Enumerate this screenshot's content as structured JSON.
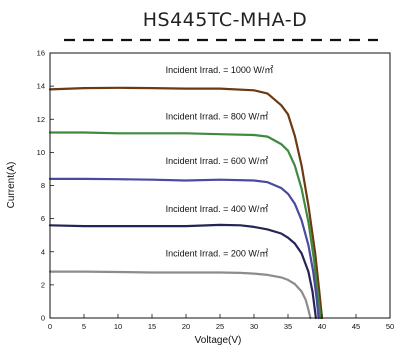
{
  "chart_data": {
    "type": "line",
    "title": "HS445TC-MHA-D",
    "xlabel": "Voltage(V)",
    "ylabel": "Current(A)",
    "xlim": [
      0,
      50
    ],
    "ylim": [
      0,
      16
    ],
    "x_ticks": [
      "0",
      "5",
      "10",
      "15",
      "20",
      "25",
      "30",
      "35",
      "40",
      "45",
      "50"
    ],
    "y_ticks": [
      "0",
      "2",
      "4",
      "6",
      "8",
      "10",
      "12",
      "14",
      "16"
    ],
    "grid": false,
    "series": [
      {
        "name": "Incident Irrad. = 1000 W/㎡",
        "color": "#6b3a12",
        "points": [
          [
            0,
            13.8
          ],
          [
            5,
            13.88
          ],
          [
            10,
            13.9
          ],
          [
            15,
            13.88
          ],
          [
            20,
            13.85
          ],
          [
            25,
            13.85
          ],
          [
            30,
            13.75
          ],
          [
            32,
            13.55
          ],
          [
            34,
            12.85
          ],
          [
            35,
            12.3
          ],
          [
            36,
            11.0
          ],
          [
            37,
            9.2
          ],
          [
            38,
            6.8
          ],
          [
            39,
            3.9
          ],
          [
            39.6,
            1.6
          ],
          [
            40.0,
            0.0
          ]
        ]
      },
      {
        "name": "Incident Irrad. = 800 W/㎡",
        "color": "#3f8a3e",
        "points": [
          [
            0,
            11.2
          ],
          [
            5,
            11.2
          ],
          [
            10,
            11.15
          ],
          [
            15,
            11.15
          ],
          [
            20,
            11.15
          ],
          [
            25,
            11.1
          ],
          [
            30,
            11.05
          ],
          [
            32,
            10.95
          ],
          [
            34,
            10.5
          ],
          [
            35,
            10.1
          ],
          [
            36,
            9.2
          ],
          [
            37,
            7.8
          ],
          [
            38,
            5.8
          ],
          [
            38.8,
            3.6
          ],
          [
            39.4,
            1.4
          ],
          [
            39.8,
            0.0
          ]
        ]
      },
      {
        "name": "Incident Irrad. = 600 W/㎡",
        "color": "#4a4aa0",
        "points": [
          [
            0,
            8.4
          ],
          [
            5,
            8.4
          ],
          [
            10,
            8.38
          ],
          [
            15,
            8.35
          ],
          [
            20,
            8.3
          ],
          [
            25,
            8.35
          ],
          [
            30,
            8.3
          ],
          [
            32,
            8.2
          ],
          [
            34,
            7.85
          ],
          [
            35,
            7.5
          ],
          [
            36,
            6.9
          ],
          [
            37,
            5.9
          ],
          [
            38,
            4.4
          ],
          [
            38.7,
            2.8
          ],
          [
            39.2,
            1.2
          ],
          [
            39.5,
            0.0
          ]
        ]
      },
      {
        "name": "Incident Irrad. = 400 W/㎡",
        "color": "#242457",
        "points": [
          [
            0,
            5.6
          ],
          [
            5,
            5.55
          ],
          [
            10,
            5.55
          ],
          [
            15,
            5.55
          ],
          [
            20,
            5.55
          ],
          [
            25,
            5.62
          ],
          [
            28,
            5.6
          ],
          [
            30,
            5.5
          ],
          [
            32,
            5.35
          ],
          [
            34,
            5.1
          ],
          [
            35,
            4.85
          ],
          [
            36,
            4.5
          ],
          [
            37,
            3.9
          ],
          [
            38,
            2.8
          ],
          [
            38.6,
            1.6
          ],
          [
            39.1,
            0.0
          ]
        ]
      },
      {
        "name": "Incident Irrad. = 200 W/㎡",
        "color": "#8c8c8c",
        "points": [
          [
            0,
            2.8
          ],
          [
            5,
            2.8
          ],
          [
            10,
            2.78
          ],
          [
            15,
            2.75
          ],
          [
            20,
            2.75
          ],
          [
            25,
            2.75
          ],
          [
            28,
            2.72
          ],
          [
            30,
            2.68
          ],
          [
            32,
            2.6
          ],
          [
            34,
            2.45
          ],
          [
            35,
            2.3
          ],
          [
            36,
            2.05
          ],
          [
            37,
            1.6
          ],
          [
            37.6,
            1.1
          ],
          [
            38.0,
            0.5
          ],
          [
            38.3,
            0.0
          ]
        ]
      }
    ],
    "annotations": [
      {
        "text": "Incident Irrad. = 1000 W/㎡",
        "x": 17,
        "y": 14.8
      },
      {
        "text": "Incident Irrad. = 800 W/㎡",
        "x": 17,
        "y": 12.0
      },
      {
        "text": "Incident Irrad. = 600 W/㎡",
        "x": 17,
        "y": 9.3
      },
      {
        "text": "Incident Irrad. = 400 W/㎡",
        "x": 17,
        "y": 6.4
      },
      {
        "text": "Incident Irrad. = 200 W/㎡",
        "x": 17,
        "y": 3.7
      }
    ]
  }
}
